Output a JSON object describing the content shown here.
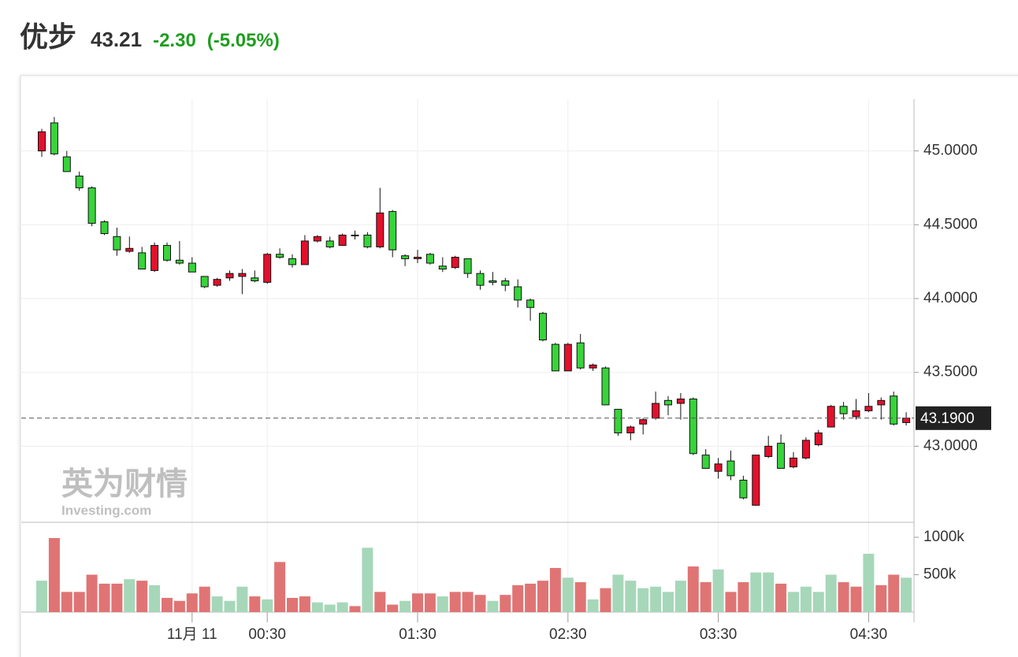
{
  "header": {
    "name": "优步",
    "price": "43.21",
    "change": "-2.30",
    "change_pct": "(-5.05%)"
  },
  "watermark": {
    "brand": "英为财情",
    "site": "Investing.com"
  },
  "chart_data": {
    "type": "candlestick",
    "categories": [
      "23:00",
      "23:05",
      "23:10",
      "23:15",
      "23:20",
      "23:25",
      "23:30",
      "23:35",
      "23:40",
      "23:45",
      "23:50",
      "23:55",
      "00:00",
      "00:05",
      "00:10",
      "00:15",
      "00:20",
      "00:25",
      "00:30",
      "00:35",
      "00:40",
      "00:45",
      "00:50",
      "00:55",
      "01:00",
      "01:05",
      "01:10",
      "01:15",
      "01:20",
      "01:25",
      "01:30",
      "01:35",
      "01:40",
      "01:45",
      "01:50",
      "01:55",
      "02:00",
      "02:05",
      "02:10",
      "02:15",
      "02:20",
      "02:25",
      "02:30",
      "02:35",
      "02:40",
      "02:45",
      "02:50",
      "02:55",
      "03:00",
      "03:05",
      "03:10",
      "03:15",
      "03:20",
      "03:25",
      "03:30",
      "03:35",
      "03:40",
      "03:45",
      "03:50",
      "03:55",
      "04:00",
      "04:05",
      "04:10",
      "04:15",
      "04:20",
      "04:25",
      "04:30",
      "04:35",
      "04:40",
      "04:45"
    ],
    "open": [
      45.0,
      45.19,
      44.96,
      44.83,
      44.75,
      44.52,
      44.42,
      44.32,
      44.31,
      44.19,
      44.36,
      44.26,
      44.24,
      44.15,
      44.09,
      44.14,
      44.15,
      44.14,
      44.11,
      44.3,
      44.27,
      44.23,
      44.39,
      44.39,
      44.36,
      44.425,
      44.43,
      44.35,
      44.59,
      44.29,
      44.27,
      44.3,
      44.22,
      44.21,
      44.27,
      44.17,
      44.12,
      44.12,
      44.08,
      43.99,
      43.9,
      43.69,
      43.51,
      43.7,
      43.53,
      43.53,
      43.25,
      43.09,
      43.15,
      43.19,
      43.31,
      43.29,
      43.32,
      42.94,
      42.83,
      42.9,
      42.77,
      42.6,
      42.93,
      43.02,
      42.86,
      42.92,
      43.01,
      43.13,
      43.27,
      43.2,
      43.24,
      43.28,
      43.34,
      43.16
    ],
    "high": [
      45.15,
      45.23,
      45.0,
      44.86,
      44.76,
      44.53,
      44.48,
      44.42,
      44.35,
      44.38,
      44.38,
      44.39,
      44.28,
      44.15,
      44.14,
      44.19,
      44.2,
      44.19,
      44.31,
      44.34,
      44.3,
      44.43,
      44.43,
      44.42,
      44.44,
      44.46,
      44.45,
      44.75,
      44.6,
      44.3,
      44.33,
      44.31,
      44.28,
      44.29,
      44.27,
      44.19,
      44.18,
      44.14,
      44.13,
      44.0,
      43.91,
      43.7,
      43.7,
      43.76,
      43.56,
      43.54,
      43.25,
      43.14,
      43.19,
      43.37,
      43.34,
      43.36,
      43.33,
      42.98,
      42.92,
      42.97,
      42.8,
      42.94,
      43.07,
      43.08,
      42.96,
      43.06,
      43.11,
      43.28,
      43.3,
      43.32,
      43.36,
      43.33,
      43.37,
      43.23
    ],
    "low": [
      44.96,
      44.97,
      44.86,
      44.73,
      44.49,
      44.43,
      44.29,
      44.31,
      44.2,
      44.18,
      44.25,
      44.23,
      44.18,
      44.07,
      44.08,
      44.12,
      44.03,
      44.11,
      44.1,
      44.27,
      44.21,
      44.23,
      44.38,
      44.34,
      44.36,
      44.4,
      44.34,
      44.34,
      44.28,
      44.22,
      44.24,
      44.23,
      44.18,
      44.2,
      44.14,
      44.06,
      44.09,
      44.05,
      43.94,
      43.85,
      43.71,
      43.51,
      43.51,
      43.52,
      43.51,
      43.28,
      43.07,
      43.04,
      43.08,
      43.18,
      43.21,
      43.18,
      42.94,
      42.85,
      42.78,
      42.77,
      42.64,
      42.6,
      42.92,
      42.85,
      42.85,
      42.91,
      43.0,
      43.13,
      43.18,
      43.18,
      43.23,
      43.18,
      43.14,
      43.14
    ],
    "close": [
      45.13,
      44.98,
      44.86,
      44.75,
      44.51,
      44.44,
      44.33,
      44.34,
      44.2,
      44.36,
      44.26,
      44.24,
      44.18,
      44.08,
      44.13,
      44.17,
      44.17,
      44.12,
      44.3,
      44.28,
      44.23,
      44.39,
      44.42,
      44.35,
      44.43,
      44.43,
      44.35,
      44.58,
      44.33,
      44.27,
      44.28,
      44.24,
      44.2,
      44.28,
      44.17,
      44.09,
      44.11,
      44.09,
      43.99,
      43.94,
      43.72,
      43.51,
      43.69,
      43.53,
      43.55,
      43.28,
      43.09,
      43.13,
      43.18,
      43.29,
      43.28,
      43.32,
      42.95,
      42.85,
      42.88,
      42.8,
      42.65,
      42.94,
      43.0,
      42.85,
      42.92,
      43.04,
      43.09,
      43.27,
      43.22,
      43.24,
      43.27,
      43.31,
      43.15,
      43.19
    ],
    "up_color": "#e3102c",
    "down_color": "#37d43a",
    "ylim": [
      42.49,
      45.35
    ],
    "yticks": [
      {
        "value": 43,
        "label": "43.0000"
      },
      {
        "value": 43.5,
        "label": "43.5000"
      },
      {
        "value": 44,
        "label": "44.0000"
      },
      {
        "value": 44.5,
        "label": "44.5000"
      },
      {
        "value": 45,
        "label": "45.0000"
      }
    ],
    "xticks": [
      {
        "value": "00:00",
        "label": "11月 11"
      },
      "00:30",
      "01:30",
      "02:30",
      "03:30",
      "04:30"
    ],
    "grid": true,
    "last_price": {
      "value": 43.19,
      "label": "43.1900"
    },
    "volume": {
      "values": [
        420,
        990,
        270,
        270,
        500,
        380,
        380,
        440,
        420,
        360,
        190,
        150,
        250,
        340,
        210,
        150,
        340,
        210,
        170,
        670,
        190,
        210,
        130,
        100,
        130,
        80,
        860,
        270,
        100,
        150,
        250,
        250,
        210,
        270,
        270,
        230,
        150,
        230,
        360,
        380,
        420,
        590,
        460,
        400,
        170,
        320,
        500,
        420,
        320,
        340,
        270,
        420,
        610,
        400,
        570,
        270,
        400,
        530,
        530,
        380,
        270,
        340,
        270,
        500,
        400,
        340,
        780,
        360,
        500,
        460
      ],
      "colors": [
        "#a6d7b9",
        "#e07474",
        "#e07474",
        "#e07474",
        "#e07474",
        "#e07474",
        "#e07474",
        "#a6d7b9",
        "#e07474",
        "#a6d7b9",
        "#e07474",
        "#e07474",
        "#e07474",
        "#e07474",
        "#a6d7b9",
        "#a6d7b9",
        "#a6d7b9",
        "#e07474",
        "#a6d7b9",
        "#e07474",
        "#e07474",
        "#e07474",
        "#a6d7b9",
        "#a6d7b9",
        "#a6d7b9",
        "#e07474",
        "#a6d7b9",
        "#e07474",
        "#e07474",
        "#a6d7b9",
        "#e07474",
        "#e07474",
        "#a6d7b9",
        "#e07474",
        "#e07474",
        "#e07474",
        "#a6d7b9",
        "#e07474",
        "#e07474",
        "#e07474",
        "#e07474",
        "#e07474",
        "#a6d7b9",
        "#e07474",
        "#a6d7b9",
        "#e07474",
        "#a6d7b9",
        "#a6d7b9",
        "#a6d7b9",
        "#a6d7b9",
        "#a6d7b9",
        "#a6d7b9",
        "#e07474",
        "#e07474",
        "#a6d7b9",
        "#e07474",
        "#e07474",
        "#a6d7b9",
        "#a6d7b9",
        "#e07474",
        "#a6d7b9",
        "#a6d7b9",
        "#a6d7b9",
        "#a6d7b9",
        "#e07474",
        "#e07474",
        "#a6d7b9",
        "#e07474",
        "#e07474",
        "#a6d7b9"
      ],
      "ylim": [
        0,
        1190
      ],
      "yticks": [
        {
          "value": 500,
          "label": "500k"
        },
        {
          "value": 1000,
          "label": "1000k"
        }
      ]
    }
  }
}
